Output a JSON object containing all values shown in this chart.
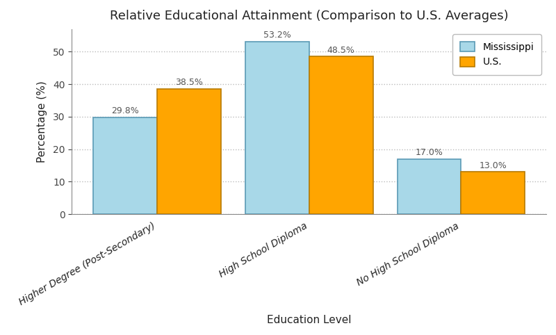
{
  "title": "Relative Educational Attainment (Comparison to U.S. Averages)",
  "xlabel": "Education Level",
  "ylabel": "Percentage (%)",
  "categories": [
    "Higher Degree (Post-Secondary)",
    "High School Diploma",
    "No High School Diploma"
  ],
  "mississippi_values": [
    29.8,
    53.2,
    17.0
  ],
  "us_values": [
    38.5,
    48.5,
    13.0
  ],
  "mississippi_color": "#a8d8e8",
  "us_color": "#FFA500",
  "mississippi_edge": "#5a9ab5",
  "us_edge": "#b87a00",
  "bar_width": 0.42,
  "ylim": [
    0,
    57
  ],
  "yticks": [
    0,
    10,
    20,
    30,
    40,
    50
  ],
  "legend_labels": [
    "Mississippi",
    "U.S."
  ],
  "title_fontsize": 13,
  "label_fontsize": 11,
  "tick_fontsize": 10,
  "annotation_fontsize": 9,
  "background_color": "#ffffff",
  "grid_color": "#bbbbbb"
}
